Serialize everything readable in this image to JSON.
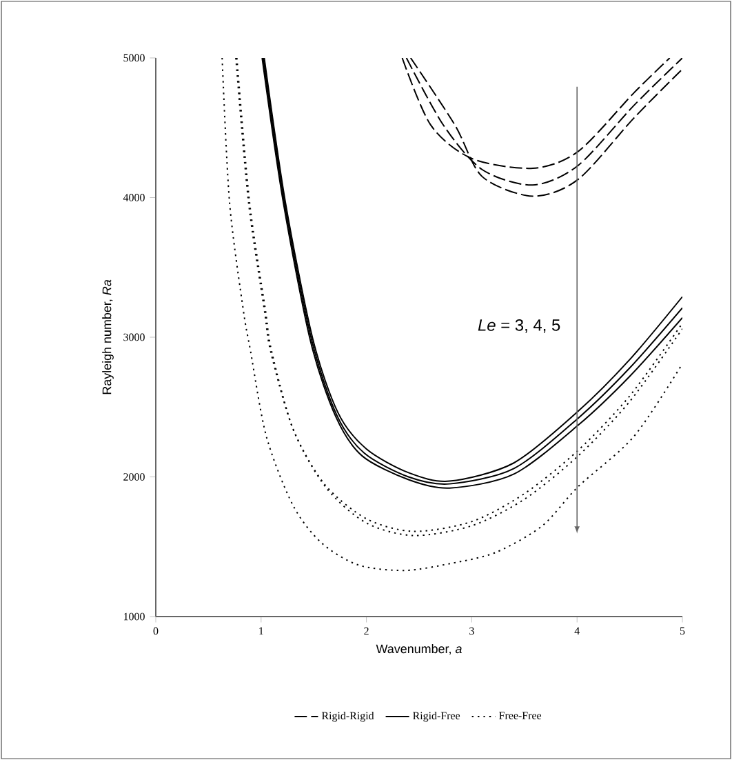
{
  "chart_data": {
    "type": "line",
    "xlabel": "Wavenumber, *a*",
    "ylabel": "Rayleigh number, *Ra*",
    "annotations": [
      "*Le* = 3, 4, 5"
    ],
    "xlim": [
      0,
      5
    ],
    "ylim": [
      1000,
      5000
    ],
    "xticks": [
      0,
      1,
      2,
      3,
      4,
      5
    ],
    "yticks": [
      1000,
      2000,
      3000,
      4000,
      5000
    ],
    "legend": "bottom",
    "marker": "none",
    "series": [
      {
        "name": "Rigid-Rigid",
        "color": "#000000",
        "line_style": "dashed",
        "x": [
          2.34,
          2.61,
          3.0,
          3.58,
          4.01,
          4.54,
          4.88
        ],
        "values": [
          5000,
          4520,
          4280,
          4210,
          4330,
          4750,
          5000
        ]
      },
      {
        "color": "#000000",
        "line_style": "dashed",
        "x": [
          2.38,
          2.73,
          3.1,
          3.58,
          4.01,
          4.54,
          5.0
        ],
        "values": [
          5000,
          4520,
          4200,
          4090,
          4230,
          4660,
          5000
        ]
      },
      {
        "color": "#000000",
        "line_style": "dashed",
        "x": [
          2.42,
          2.84,
          3.1,
          3.58,
          4.01,
          4.54,
          5.0
        ],
        "values": [
          5000,
          4520,
          4150,
          4010,
          4130,
          4570,
          4920
        ]
      },
      {
        "name": "Rigid-Free",
        "color": "#000000",
        "line_style": "solid",
        "x": [
          1.03,
          1.23,
          1.49,
          1.73,
          2.0,
          2.4,
          2.79,
          3.4,
          4.01,
          4.5,
          5.0
        ],
        "values": [
          5000,
          3970,
          2990,
          2460,
          2200,
          2030,
          1970,
          2100,
          2470,
          2840,
          3290
        ]
      },
      {
        "color": "#000000",
        "line_style": "solid",
        "x": [
          1.02,
          1.22,
          1.48,
          1.72,
          1.98,
          2.4,
          2.79,
          3.4,
          4.01,
          4.5,
          5.0
        ],
        "values": [
          5000,
          3970,
          2980,
          2440,
          2170,
          2000,
          1950,
          2060,
          2420,
          2780,
          3210
        ]
      },
      {
        "color": "#000000",
        "line_style": "solid",
        "x": [
          1.01,
          1.21,
          1.47,
          1.71,
          1.96,
          2.4,
          2.79,
          3.4,
          4.01,
          4.5,
          5.0
        ],
        "values": [
          5000,
          3970,
          2970,
          2430,
          2150,
          1980,
          1920,
          2020,
          2370,
          2720,
          3140
        ]
      },
      {
        "name": "Free-Free",
        "color": "#000000",
        "line_style": "dotted",
        "x": [
          0.76,
          0.88,
          1.03,
          1.09,
          1.3,
          1.6,
          2.0,
          2.45,
          3.0,
          3.5,
          4.01,
          4.5,
          5.0
        ],
        "values": [
          5000,
          3970,
          3200,
          2900,
          2350,
          1950,
          1700,
          1610,
          1680,
          1880,
          2190,
          2580,
          3100
        ]
      },
      {
        "color": "#000000",
        "line_style": "dotted",
        "x": [
          0.77,
          0.89,
          1.04,
          1.1,
          1.31,
          1.62,
          2.0,
          2.45,
          3.0,
          3.5,
          4.01,
          4.5,
          5.0
        ],
        "values": [
          5000,
          3970,
          3200,
          2900,
          2330,
          1920,
          1670,
          1580,
          1650,
          1840,
          2150,
          2540,
          3060
        ]
      },
      {
        "color": "#000000",
        "line_style": "dotted",
        "x": [
          0.63,
          0.7,
          0.83,
          0.9,
          1.05,
          1.3,
          1.57,
          1.92,
          2.36,
          2.8,
          3.23,
          3.67,
          4.01,
          4.54,
          5.0
        ],
        "values": [
          5000,
          3970,
          3200,
          2900,
          2290,
          1800,
          1530,
          1370,
          1330,
          1380,
          1460,
          1650,
          1930,
          2290,
          2810
        ]
      }
    ]
  }
}
